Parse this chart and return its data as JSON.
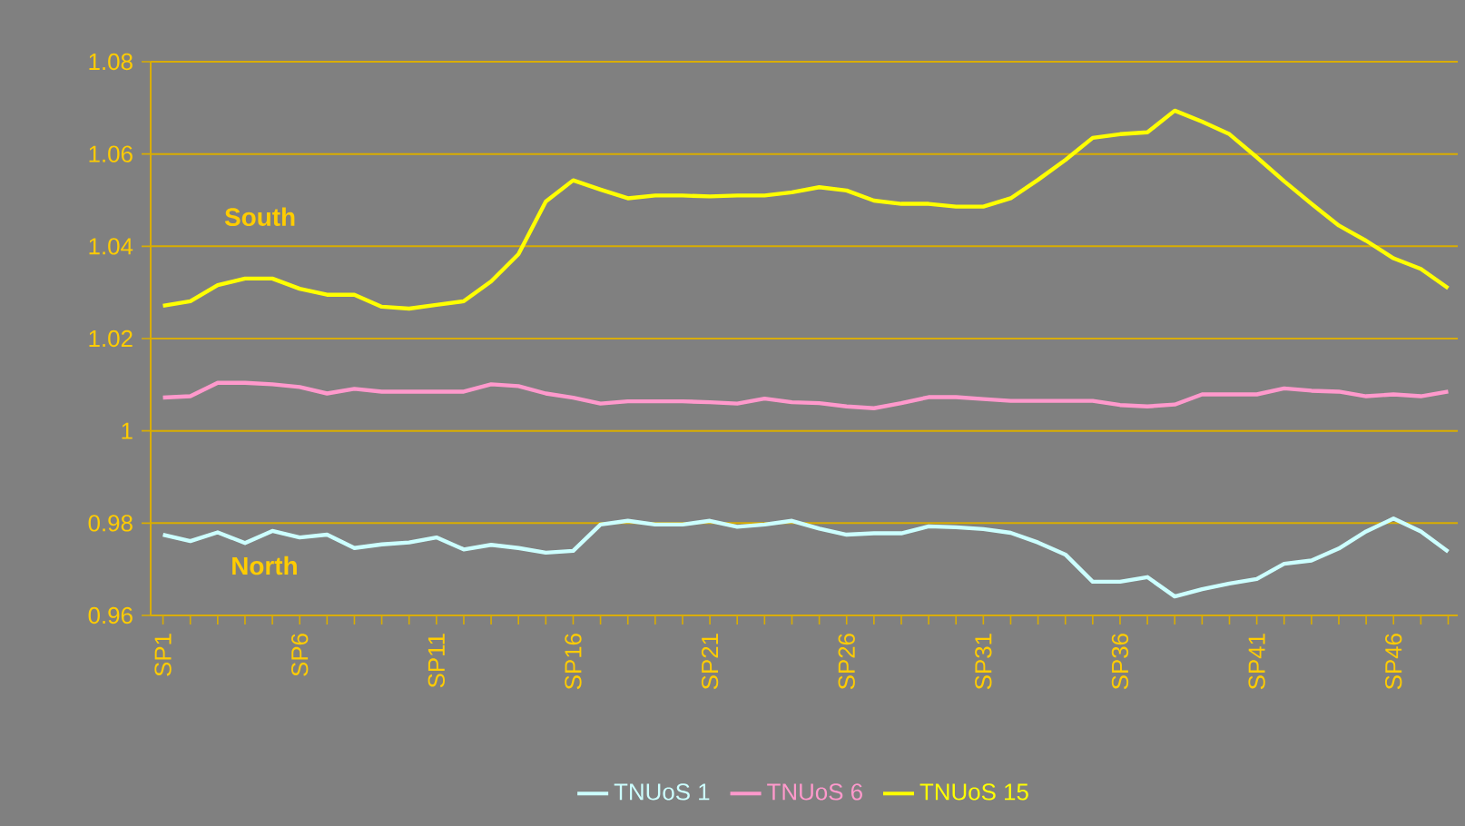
{
  "chart_data": {
    "type": "line",
    "categories": [
      "SP1",
      null,
      null,
      null,
      null,
      "SP6",
      null,
      null,
      null,
      null,
      "SP11",
      null,
      null,
      null,
      null,
      "SP16",
      null,
      null,
      null,
      null,
      "SP21",
      null,
      null,
      null,
      null,
      "SP26",
      null,
      null,
      null,
      null,
      "SP31",
      null,
      null,
      null,
      null,
      "SP36",
      null,
      null,
      null,
      null,
      "SP41",
      null,
      null,
      null,
      null,
      "SP46",
      null,
      null
    ],
    "series": [
      {
        "name": "TNUoS 1",
        "color": "#ccffff",
        "values": [
          0.9775,
          0.9761,
          0.978,
          0.9757,
          0.9783,
          0.9769,
          0.9775,
          0.9746,
          0.9754,
          0.9758,
          0.9769,
          0.9743,
          0.9753,
          0.9746,
          0.9736,
          0.974,
          0.9797,
          0.9805,
          0.9797,
          0.9797,
          0.9805,
          0.9792,
          0.9797,
          0.9805,
          0.9788,
          0.9775,
          0.9778,
          0.9778,
          0.9793,
          0.9791,
          0.9787,
          0.9779,
          0.9758,
          0.9732,
          0.9673,
          0.9673,
          0.9683,
          0.9641,
          0.9657,
          0.9669,
          0.9679,
          0.9712,
          0.9719,
          0.9745,
          0.9782,
          0.981,
          0.9782,
          0.9738
        ]
      },
      {
        "name": "TNUoS 6",
        "color": "#ff99cc",
        "values": [
          1.0072,
          1.0075,
          1.0104,
          1.0104,
          1.0101,
          1.0095,
          1.0081,
          1.0091,
          1.0085,
          1.0085,
          1.0085,
          1.0085,
          1.0101,
          1.0097,
          1.0081,
          1.0072,
          1.0059,
          1.0064,
          1.0064,
          1.0064,
          1.0062,
          1.0059,
          1.007,
          1.0062,
          1.006,
          1.0053,
          1.0049,
          1.006,
          1.0073,
          1.0073,
          1.0069,
          1.0065,
          1.0065,
          1.0065,
          1.0065,
          1.0056,
          1.0053,
          1.0057,
          1.0079,
          1.0079,
          1.0079,
          1.0092,
          1.0087,
          1.0085,
          1.0075,
          1.0079,
          1.0075,
          1.0085
        ]
      },
      {
        "name": "TNUoS 15",
        "color": "#ffff00",
        "values": [
          1.0271,
          1.0281,
          1.0316,
          1.033,
          1.033,
          1.0308,
          1.0295,
          1.0295,
          1.0269,
          1.0265,
          1.0273,
          1.0281,
          1.0324,
          1.0383,
          1.0497,
          1.0543,
          1.0523,
          1.0504,
          1.051,
          1.051,
          1.0508,
          1.051,
          1.051,
          1.0517,
          1.0528,
          1.0521,
          1.0499,
          1.0492,
          1.0492,
          1.0486,
          1.0486,
          1.0504,
          1.0544,
          1.0587,
          1.0635,
          1.0643,
          1.0647,
          1.0694,
          1.067,
          1.0643,
          1.0593,
          1.0541,
          1.0492,
          1.0445,
          1.0412,
          1.0374,
          1.0351,
          1.0309
        ]
      }
    ],
    "ylim": [
      0.96,
      1.08
    ],
    "yticks": [
      0.96,
      0.98,
      1,
      1.02,
      1.04,
      1.06,
      1.08
    ],
    "grid": "y",
    "legend": "bottom",
    "marker": "none",
    "line_style": "solid",
    "annotations": [
      "South",
      "North"
    ]
  }
}
